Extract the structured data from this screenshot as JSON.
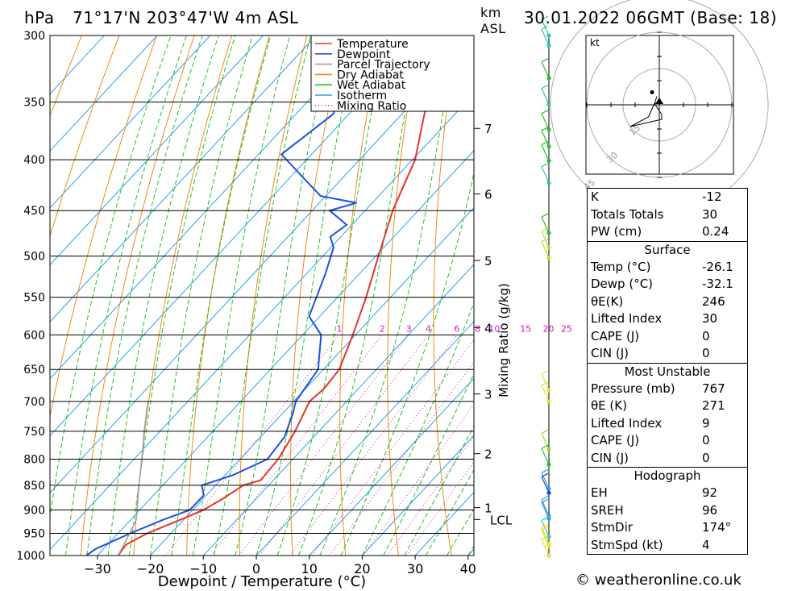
{
  "header": {
    "pressure_unit": "hPa",
    "location": "71°17'N  203°47'W  4m  ASL",
    "km": "km",
    "asl": "ASL",
    "datetime": "30.01.2022  06GMT  (Base: 18)"
  },
  "legend": [
    "Temperature",
    "Dewpoint",
    "Parcel Trajectory",
    "Dry Adiabat",
    "Wet Adiabat",
    "Isotherm",
    "Mixing Ratio"
  ],
  "colors": {
    "temperature": "#e8332a",
    "dewpoint": "#1f4fe0",
    "parcel": "#a0a0a0",
    "dry_adiabat": "#f08a14",
    "wet_adiabat": "#26c226",
    "isotherm": "#25a4ea",
    "mixing_ratio": "#d81ab6"
  },
  "chart_data": {
    "type": "line",
    "xlabel": "Dewpoint / Temperature (°C)",
    "ylabel": "hPa",
    "right_label": "Mixing Ratio (g/kg)",
    "xticks": [
      "−30",
      "−20",
      "−10",
      "0",
      "10",
      "20",
      "30",
      "40"
    ],
    "xtick_values": [
      -30,
      -20,
      -10,
      0,
      10,
      20,
      30,
      40
    ],
    "pressure_levels": [
      300,
      350,
      400,
      450,
      500,
      550,
      600,
      650,
      700,
      750,
      800,
      850,
      900,
      950,
      1000
    ],
    "km_ticks": [
      {
        "label": "7",
        "p": 372
      },
      {
        "label": "6",
        "p": 433
      },
      {
        "label": "5",
        "p": 505
      },
      {
        "label": "4",
        "p": 590
      },
      {
        "label": "3",
        "p": 688
      },
      {
        "label": "2",
        "p": 790
      },
      {
        "label": "1",
        "p": 895
      }
    ],
    "lcl": {
      "label": "LCL",
      "p": 920
    },
    "mixing_ratio_labels": [
      "1",
      "2",
      "3",
      "4",
      "6",
      "8",
      "10",
      "15",
      "20",
      "25"
    ],
    "mixing_ratio_values": [
      1,
      2,
      3,
      4,
      6,
      8,
      10,
      15,
      20,
      25
    ],
    "series": [
      {
        "name": "Temperature",
        "points": [
          {
            "p": 1000,
            "t": -26.1
          },
          {
            "p": 975,
            "t": -26.5
          },
          {
            "p": 950,
            "t": -24.5
          },
          {
            "p": 925,
            "t": -21.2
          },
          {
            "p": 900,
            "t": -18.0
          },
          {
            "p": 875,
            "t": -16.2
          },
          {
            "p": 850,
            "t": -14.8
          },
          {
            "p": 840,
            "t": -12.4
          },
          {
            "p": 800,
            "t": -12.8
          },
          {
            "p": 750,
            "t": -14.5
          },
          {
            "p": 700,
            "t": -17.0
          },
          {
            "p": 680,
            "t": -16.5
          },
          {
            "p": 650,
            "t": -17.0
          },
          {
            "p": 600,
            "t": -20.5
          },
          {
            "p": 550,
            "t": -24.6
          },
          {
            "p": 500,
            "t": -29.5
          },
          {
            "p": 450,
            "t": -34.8
          },
          {
            "p": 400,
            "t": -39.5
          },
          {
            "p": 350,
            "t": -47.4
          },
          {
            "p": 300,
            "t": -53.0
          }
        ]
      },
      {
        "name": "Dewpoint",
        "points": [
          {
            "p": 1000,
            "t": -32.1
          },
          {
            "p": 985,
            "t": -31.5
          },
          {
            "p": 950,
            "t": -27.7
          },
          {
            "p": 920,
            "t": -23.8
          },
          {
            "p": 900,
            "t": -20.6
          },
          {
            "p": 870,
            "t": -20.5
          },
          {
            "p": 850,
            "t": -22.6
          },
          {
            "p": 830,
            "t": -18.5
          },
          {
            "p": 800,
            "t": -14.8
          },
          {
            "p": 760,
            "t": -15.5
          },
          {
            "p": 720,
            "t": -18.0
          },
          {
            "p": 700,
            "t": -19.6
          },
          {
            "p": 650,
            "t": -21.0
          },
          {
            "p": 600,
            "t": -26.5
          },
          {
            "p": 575,
            "t": -32.0
          },
          {
            "p": 520,
            "t": -36.5
          },
          {
            "p": 490,
            "t": -39.5
          },
          {
            "p": 478,
            "t": -42.0
          },
          {
            "p": 465,
            "t": -41.0
          },
          {
            "p": 450,
            "t": -46.7
          },
          {
            "p": 442,
            "t": -43.0
          },
          {
            "p": 435,
            "t": -51.0
          },
          {
            "p": 395,
            "t": -65.7
          },
          {
            "p": 360,
            "t": -63.0
          },
          {
            "p": 330,
            "t": -66.0
          },
          {
            "p": 300,
            "t": -75.0
          }
        ]
      },
      {
        "name": "Parcel Trajectory",
        "points": [
          {
            "p": 1000,
            "t": -26.1
          },
          {
            "p": 950,
            "t": -27.8
          },
          {
            "p": 920,
            "t": -29.0
          },
          {
            "p": 900,
            "t": -30.5
          },
          {
            "p": 850,
            "t": -34.5
          },
          {
            "p": 800,
            "t": -38.5
          },
          {
            "p": 750,
            "t": -43.0
          },
          {
            "p": 700,
            "t": -47.5
          }
        ]
      }
    ],
    "wind_profile": [
      {
        "p": 300,
        "color": "#2ec8a8"
      },
      {
        "p": 307,
        "color": "#2ec8a8"
      },
      {
        "p": 331,
        "color": "#28c228"
      },
      {
        "p": 352,
        "color": "#2ec8a8"
      },
      {
        "p": 373,
        "color": "#28c228"
      },
      {
        "p": 388,
        "color": "#28c228"
      },
      {
        "p": 401,
        "color": "#28c228"
      },
      {
        "p": 422,
        "color": "#2ec8a8"
      },
      {
        "p": 474,
        "color": "#28c228"
      },
      {
        "p": 490,
        "color": "#c8dc30"
      },
      {
        "p": 502,
        "color": "#c8dc30"
      },
      {
        "p": 682,
        "color": "#e6e030"
      },
      {
        "p": 700,
        "color": "#e6e030"
      },
      {
        "p": 782,
        "color": "#9ad830"
      },
      {
        "p": 810,
        "color": "#28c228"
      },
      {
        "p": 857,
        "color": "#30a0e0"
      },
      {
        "p": 865,
        "color": "#2040e0"
      },
      {
        "p": 912,
        "color": "#30a0e0"
      },
      {
        "p": 918,
        "color": "#30a0e0"
      },
      {
        "p": 957,
        "color": "#2ec8a8"
      },
      {
        "p": 973,
        "color": "#e6e030"
      },
      {
        "p": 978,
        "color": "#e6e030"
      },
      {
        "p": 1000,
        "color": "#e6e030"
      }
    ]
  },
  "hodograph": {
    "unit": "kt",
    "ring_labels": [
      "15",
      "30",
      "45"
    ],
    "points": [
      [
        -1.0,
        3.5
      ],
      [
        -2.0,
        0.5
      ],
      [
        1.0,
        -4.0
      ],
      [
        1.0,
        -6.0
      ],
      [
        -12.0,
        -9.0
      ],
      [
        -4.5,
        -5.0
      ],
      [
        -2.0,
        0.5
      ],
      [
        0.5,
        1.0
      ]
    ]
  },
  "panel": {
    "indices": [
      {
        "label": "K",
        "value": "-12"
      },
      {
        "label": "Totals Totals",
        "value": "30"
      },
      {
        "label": "PW (cm)",
        "value": "0.24"
      }
    ],
    "surface": {
      "title": "Surface",
      "rows": [
        {
          "label": "Temp (°C)",
          "value": "-26.1"
        },
        {
          "label": "Dewp (°C)",
          "value": "-32.1"
        },
        {
          "label": "θE(K)",
          "value": "246"
        },
        {
          "label": "Lifted Index",
          "value": "30"
        },
        {
          "label": "CAPE (J)",
          "value": "0"
        },
        {
          "label": "CIN (J)",
          "value": "0"
        }
      ]
    },
    "most_unstable": {
      "title": "Most Unstable",
      "rows": [
        {
          "label": "Pressure (mb)",
          "value": "767"
        },
        {
          "label": "θE (K)",
          "value": "271"
        },
        {
          "label": "Lifted Index",
          "value": "9"
        },
        {
          "label": "CAPE (J)",
          "value": "0"
        },
        {
          "label": "CIN (J)",
          "value": "0"
        }
      ]
    },
    "hodograph": {
      "title": "Hodograph",
      "rows": [
        {
          "label": "EH",
          "value": "92"
        },
        {
          "label": "SREH",
          "value": "96"
        },
        {
          "label": "StmDir",
          "value": "174°"
        },
        {
          "label": "StmSpd (kt)",
          "value": "4"
        }
      ]
    }
  },
  "footer": "© weatheronline.co.uk"
}
